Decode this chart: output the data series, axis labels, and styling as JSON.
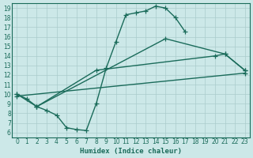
{
  "xlabel": "Humidex (Indice chaleur)",
  "xlim": [
    -0.5,
    23.5
  ],
  "ylim": [
    5.5,
    19.5
  ],
  "xticks": [
    0,
    1,
    2,
    3,
    4,
    5,
    6,
    7,
    8,
    9,
    10,
    11,
    12,
    13,
    14,
    15,
    16,
    17,
    18,
    19,
    20,
    21,
    22,
    23
  ],
  "yticks": [
    6,
    7,
    8,
    9,
    10,
    11,
    12,
    13,
    14,
    15,
    16,
    17,
    18,
    19
  ],
  "bg_color": "#cce8e8",
  "grid_color": "#aacccc",
  "line_color": "#1a6b5a",
  "curve1_x": [
    0,
    1,
    2,
    3,
    4,
    5,
    6,
    7,
    8,
    9,
    10,
    11,
    12,
    13,
    14,
    15,
    16,
    17
  ],
  "curve1_y": [
    10,
    9.5,
    8.7,
    8.3,
    7.8,
    6.5,
    6.3,
    6.2,
    9.0,
    12.7,
    15.5,
    18.3,
    18.5,
    18.7,
    19.2,
    19.0,
    18.0,
    16.5
  ],
  "curve2_x": [
    0,
    2,
    15,
    21,
    23
  ],
  "curve2_y": [
    10,
    8.7,
    15.8,
    14.2,
    12.5
  ],
  "curve3_x": [
    2,
    8,
    20,
    21,
    23
  ],
  "curve3_y": [
    8.7,
    12.5,
    14.0,
    14.2,
    12.5
  ],
  "curve4_x": [
    0,
    23
  ],
  "curve4_y": [
    9.8,
    12.2
  ],
  "linewidth": 1.0,
  "markersize": 4
}
